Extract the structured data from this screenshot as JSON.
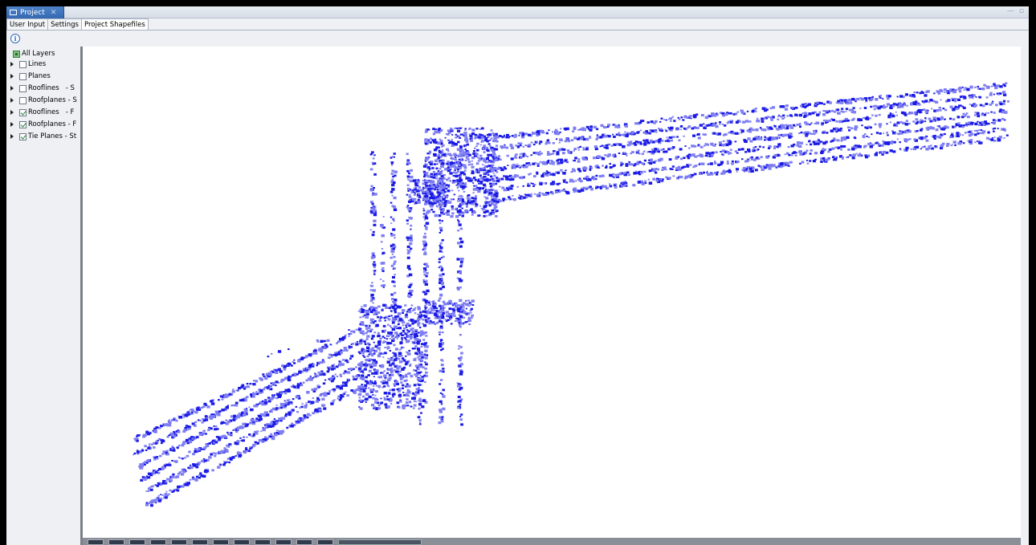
{
  "view_tab": {
    "title": "Project",
    "close_glyph": "✕",
    "minimize_glyph": "—",
    "maximize_glyph": "▫"
  },
  "tabs": [
    {
      "label": "User Input",
      "active": false
    },
    {
      "label": "Settings",
      "active": false
    },
    {
      "label": "Project Shapefiles",
      "active": true
    }
  ],
  "toolbar": {
    "info_glyph": "i"
  },
  "layers": {
    "root": {
      "label": "All Layers",
      "state": "partial"
    },
    "items": [
      {
        "label": "Lines",
        "checked": false
      },
      {
        "label": "Planes",
        "checked": false
      },
      {
        "label": "Rooflines   - S",
        "checked": false
      },
      {
        "label": "Roofplanes - S",
        "checked": false
      },
      {
        "label": "Rooflines   - F",
        "checked": true
      },
      {
        "label": "Roofplanes - F",
        "checked": true
      },
      {
        "label": "Tie Planes - St",
        "checked": true
      }
    ]
  },
  "colors": {
    "point_dark": "#1a1ae6",
    "point_light": "#7f7ff2",
    "canvas_background": "#ffffff"
  }
}
